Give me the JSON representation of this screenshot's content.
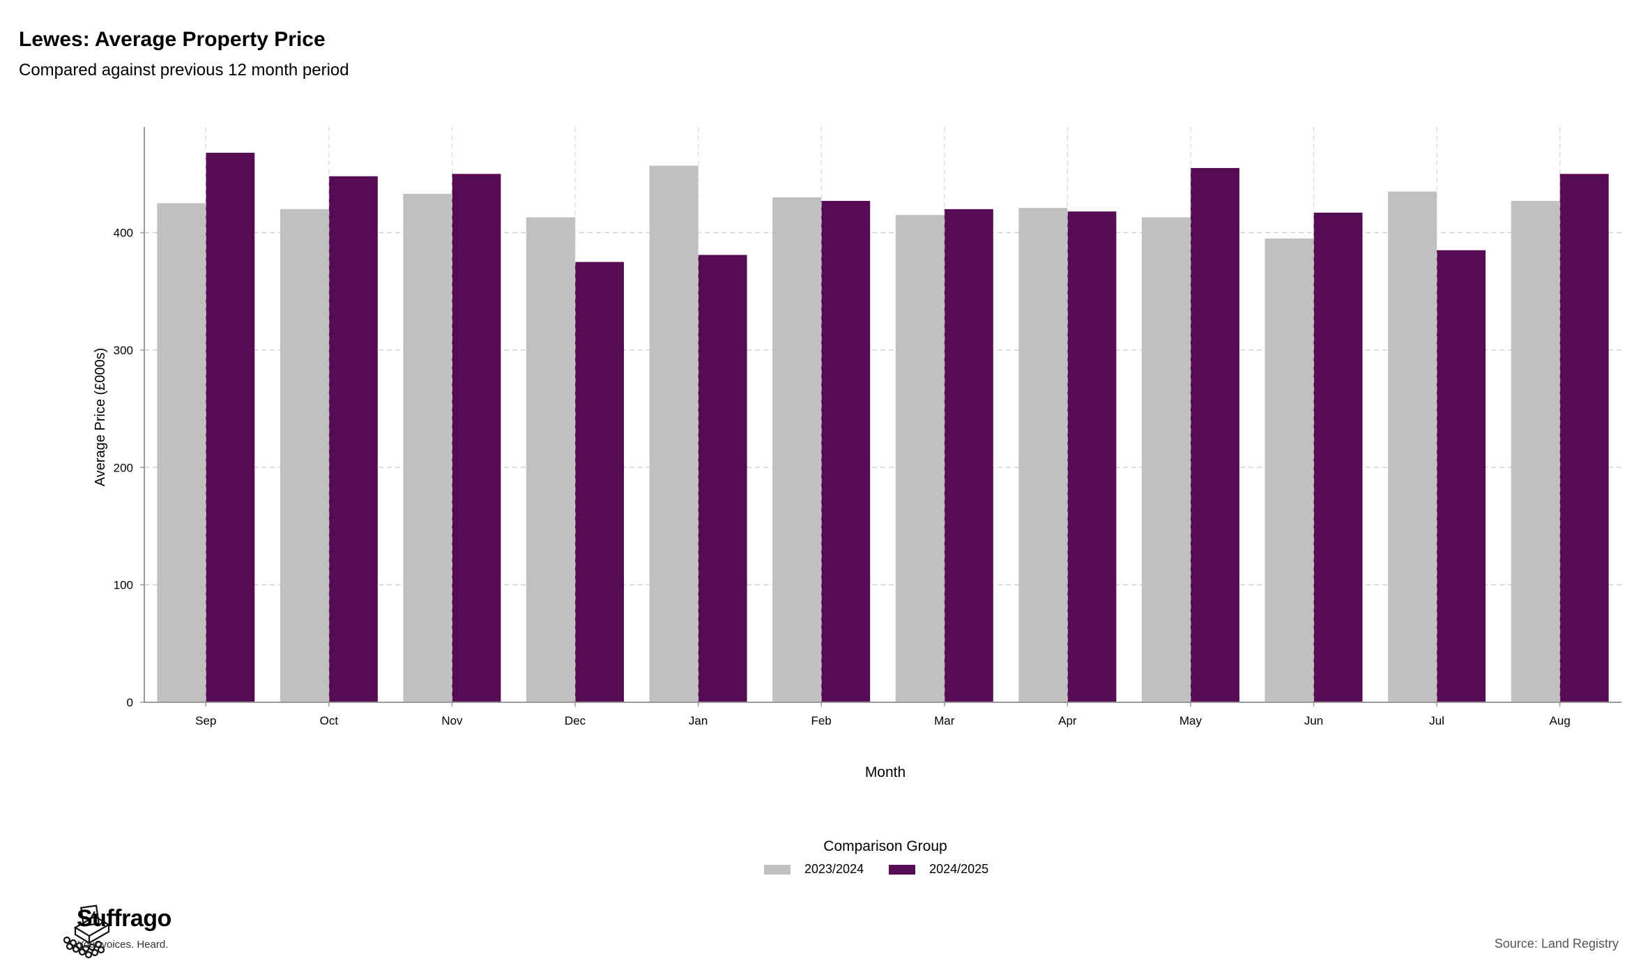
{
  "header": {
    "title": "Lewes: Average Property Price",
    "subtitle": "Compared against previous 12 month period"
  },
  "chart_data": {
    "type": "bar",
    "categories": [
      "Sep",
      "Oct",
      "Nov",
      "Dec",
      "Jan",
      "Feb",
      "Mar",
      "Apr",
      "May",
      "Jun",
      "Jul",
      "Aug"
    ],
    "series": [
      {
        "name": "2023/2024",
        "color": "#c0c0c0",
        "values": [
          425,
          420,
          433,
          413,
          457,
          430,
          415,
          421,
          413,
          395,
          435,
          427
        ]
      },
      {
        "name": "2024/2025",
        "color": "#560c52",
        "values": [
          468,
          448,
          450,
          375,
          381,
          427,
          420,
          418,
          455,
          417,
          385,
          450
        ]
      }
    ],
    "xlabel": "Month",
    "ylabel": "Average Price (£000s)",
    "yticks": [
      0,
      100,
      200,
      300,
      400
    ],
    "ylim": [
      0,
      490
    ],
    "grid": true,
    "legend_title": "Comparison Group",
    "legend_position": "bottom-center"
  },
  "footer": {
    "brand": "Suffrago",
    "tagline": "Your voices. Heard.",
    "source": "Source: Land Registry"
  }
}
